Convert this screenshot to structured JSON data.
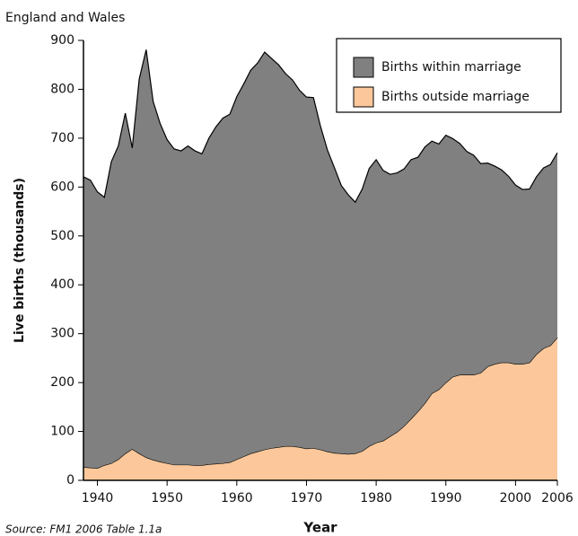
{
  "chart_data": {
    "type": "stacked_area",
    "subtitle": "England and Wales",
    "y_label": "Live births (thousands)",
    "x_label": "Year",
    "source": "Source: FM1 2006 Table 1.1a",
    "x": [
      1938,
      1939,
      1940,
      1941,
      1942,
      1943,
      1944,
      1945,
      1946,
      1947,
      1948,
      1949,
      1950,
      1951,
      1952,
      1953,
      1954,
      1955,
      1956,
      1957,
      1958,
      1959,
      1960,
      1961,
      1962,
      1963,
      1964,
      1965,
      1966,
      1967,
      1968,
      1969,
      1970,
      1971,
      1972,
      1973,
      1974,
      1975,
      1976,
      1977,
      1978,
      1979,
      1980,
      1981,
      1982,
      1983,
      1984,
      1985,
      1986,
      1987,
      1988,
      1989,
      1990,
      1991,
      1992,
      1993,
      1994,
      1995,
      1996,
      1997,
      1998,
      1999,
      2000,
      2001,
      2002,
      2003,
      2004,
      2005,
      2006
    ],
    "series": [
      {
        "name": "Births outside marriage",
        "color": "#fcc89b",
        "values": [
          27,
          26,
          25,
          31,
          35,
          43,
          55,
          64,
          55,
          47,
          42,
          38,
          35,
          32,
          32,
          32,
          31,
          31,
          33,
          34,
          35,
          37,
          43,
          49,
          55,
          59,
          63,
          66,
          68,
          70,
          70,
          68,
          65,
          66,
          63,
          59,
          56,
          55,
          54,
          55,
          60,
          70,
          77,
          81,
          90,
          99,
          111,
          126,
          141,
          158,
          178,
          186,
          200,
          212,
          216,
          216,
          216,
          220,
          233,
          238,
          241,
          241,
          238,
          238,
          241,
          258,
          270,
          276,
          292
        ]
      },
      {
        "name": "Births within marriage",
        "color": "#808080",
        "values": [
          594,
          588,
          565,
          548,
          617,
          641,
          696,
          616,
          766,
          834,
          733,
          692,
          662,
          646,
          642,
          652,
          643,
          637,
          667,
          689,
          706,
          712,
          742,
          762,
          784,
          795,
          813,
          797,
          782,
          762,
          749,
          730,
          719,
          717,
          662,
          617,
          584,
          548,
          530,
          514,
          536,
          568,
          579,
          553,
          536,
          530,
          526,
          530,
          520,
          524,
          516,
          502,
          506,
          487,
          473,
          457,
          449,
          428,
          416,
          405,
          394,
          381,
          366,
          357,
          355,
          363,
          369,
          370,
          378
        ]
      }
    ],
    "xlim": [
      1938,
      2006
    ],
    "xticks": [
      1940,
      1950,
      1960,
      1970,
      1980,
      1990,
      2000,
      2006
    ],
    "ylim": [
      0,
      900
    ],
    "yticks": [
      0,
      100,
      200,
      300,
      400,
      500,
      600,
      700,
      800,
      900
    ],
    "legend": "top-right"
  }
}
